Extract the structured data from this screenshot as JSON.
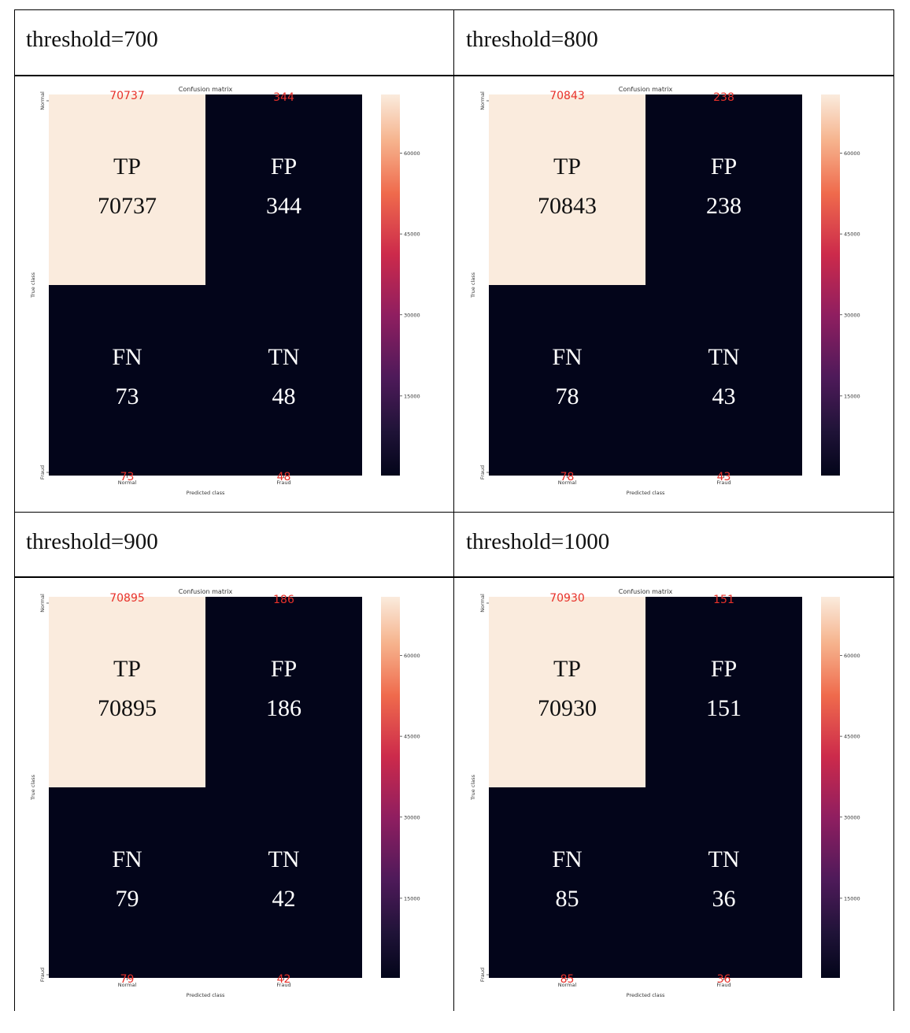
{
  "chart_data": [
    {
      "type": "heatmap",
      "header": "threshold=700",
      "title": "Confusion matrix",
      "xlabel": "Predicted class",
      "ylabel": "True class",
      "x_ticks": [
        "Normal",
        "Fraud"
      ],
      "y_ticks": [
        "Normal",
        "Fraud"
      ],
      "values": [
        [
          70737,
          344
        ],
        [
          73,
          48
        ]
      ],
      "labels": [
        [
          "TP",
          "FP"
        ],
        [
          "FN",
          "TN"
        ]
      ],
      "colorbar_ticks": [
        "60000",
        "45000",
        "30000",
        "15000"
      ]
    },
    {
      "type": "heatmap",
      "header": "threshold=800",
      "title": "Confusion matrix",
      "xlabel": "Predicted class",
      "ylabel": "True class",
      "x_ticks": [
        "Normal",
        "Fraud"
      ],
      "y_ticks": [
        "Normal",
        "Fraud"
      ],
      "values": [
        [
          70843,
          238
        ],
        [
          78,
          43
        ]
      ],
      "labels": [
        [
          "TP",
          "FP"
        ],
        [
          "FN",
          "TN"
        ]
      ],
      "colorbar_ticks": [
        "60000",
        "45000",
        "30000",
        "15000"
      ]
    },
    {
      "type": "heatmap",
      "header": "threshold=900",
      "title": "Confusion matrix",
      "xlabel": "Predicted class",
      "ylabel": "True class",
      "x_ticks": [
        "Normal",
        "Fraud"
      ],
      "y_ticks": [
        "Normal",
        "Fraud"
      ],
      "values": [
        [
          70895,
          186
        ],
        [
          79,
          42
        ]
      ],
      "labels": [
        [
          "TP",
          "FP"
        ],
        [
          "FN",
          "TN"
        ]
      ],
      "colorbar_ticks": [
        "60000",
        "45000",
        "30000",
        "15000"
      ]
    },
    {
      "type": "heatmap",
      "header": "threshold=1000",
      "title": "Confusion matrix",
      "xlabel": "Predicted class",
      "ylabel": "True class",
      "x_ticks": [
        "Normal",
        "Fraud"
      ],
      "y_ticks": [
        "Normal",
        "Fraud"
      ],
      "values": [
        [
          70930,
          151
        ],
        [
          85,
          36
        ]
      ],
      "labels": [
        [
          "TP",
          "FP"
        ],
        [
          "FN",
          "TN"
        ]
      ],
      "colorbar_ticks": [
        "60000",
        "45000",
        "30000",
        "15000"
      ]
    }
  ],
  "colors": {
    "high": "#faebdd",
    "low": "#03051a",
    "annotation_red": "#e8312a",
    "overlay_text_dark": "#111111",
    "overlay_text_light": "#ffffff"
  }
}
